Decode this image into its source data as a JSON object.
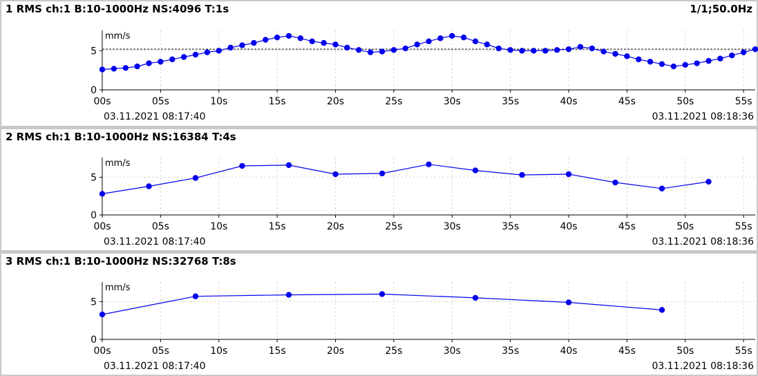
{
  "header": {
    "page_info": "1/1;50.0Hz"
  },
  "timestamps": {
    "start": "03.11.2021 08:17:40",
    "end": "03.11.2021 08:18:36"
  },
  "colors": {
    "series": "#0000ee",
    "grid": "#d8d8d8",
    "reference": "#000000"
  },
  "chart_data": [
    {
      "type": "line",
      "title": "1 RMS ch:1 B:10-1000Hz NS:4096 T:1s",
      "ylabel": "mm/s",
      "xlim": [
        0,
        56
      ],
      "ylim": [
        0,
        7.6
      ],
      "yticks": [
        0,
        5
      ],
      "xticks": [
        0,
        5,
        10,
        15,
        20,
        25,
        30,
        35,
        40,
        45,
        50,
        55
      ],
      "xticklabels": [
        "00s",
        "05s",
        "10s",
        "15s",
        "20s",
        "25s",
        "30s",
        "35s",
        "40s",
        "45s",
        "50s",
        "55s"
      ],
      "reference_line": 5.2,
      "x": [
        0,
        1,
        2,
        3,
        4,
        5,
        6,
        7,
        8,
        9,
        10,
        11,
        12,
        13,
        14,
        15,
        16,
        17,
        18,
        19,
        20,
        21,
        22,
        23,
        24,
        25,
        26,
        27,
        28,
        29,
        30,
        31,
        32,
        33,
        34,
        35,
        36,
        37,
        38,
        39,
        40,
        41,
        42,
        43,
        44,
        45,
        46,
        47,
        48,
        49,
        50,
        51,
        52,
        53,
        54,
        55,
        56
      ],
      "values": [
        2.6,
        2.7,
        2.8,
        3.0,
        3.4,
        3.6,
        3.9,
        4.2,
        4.5,
        4.8,
        5.0,
        5.4,
        5.7,
        6.0,
        6.4,
        6.7,
        6.9,
        6.6,
        6.2,
        6.0,
        5.8,
        5.4,
        5.1,
        4.8,
        4.9,
        5.1,
        5.3,
        5.8,
        6.2,
        6.6,
        6.9,
        6.7,
        6.2,
        5.8,
        5.3,
        5.1,
        5.0,
        5.0,
        5.0,
        5.1,
        5.2,
        5.5,
        5.3,
        4.9,
        4.6,
        4.3,
        3.9,
        3.6,
        3.3,
        3.0,
        3.2,
        3.4,
        3.7,
        4.0,
        4.4,
        4.8,
        5.2
      ]
    },
    {
      "type": "line",
      "title": "2 RMS ch:1 B:10-1000Hz NS:16384 T:4s",
      "ylabel": "mm/s",
      "xlim": [
        0,
        56
      ],
      "ylim": [
        0,
        7.6
      ],
      "yticks": [
        0,
        5
      ],
      "xticks": [
        0,
        5,
        10,
        15,
        20,
        25,
        30,
        35,
        40,
        45,
        50,
        55
      ],
      "xticklabels": [
        "00s",
        "05s",
        "10s",
        "15s",
        "20s",
        "25s",
        "30s",
        "35s",
        "40s",
        "45s",
        "50s",
        "55s"
      ],
      "x": [
        0,
        4,
        8,
        12,
        16,
        20,
        24,
        28,
        32,
        36,
        40,
        44,
        48,
        52
      ],
      "values": [
        2.8,
        3.8,
        4.9,
        6.5,
        6.6,
        5.4,
        5.5,
        6.7,
        5.9,
        5.3,
        5.4,
        4.3,
        3.5,
        4.4
      ]
    },
    {
      "type": "line",
      "title": "3 RMS ch:1 B:10-1000Hz NS:32768 T:8s",
      "ylabel": "mm/s",
      "xlim": [
        0,
        56
      ],
      "ylim": [
        0,
        7.6
      ],
      "yticks": [
        0,
        5
      ],
      "xticks": [
        0,
        5,
        10,
        15,
        20,
        25,
        30,
        35,
        40,
        45,
        50,
        55
      ],
      "xticklabels": [
        "00s",
        "05s",
        "10s",
        "15s",
        "20s",
        "25s",
        "30s",
        "35s",
        "40s",
        "45s",
        "50s",
        "55s"
      ],
      "x": [
        0,
        8,
        16,
        24,
        32,
        40,
        48
      ],
      "values": [
        3.3,
        5.7,
        5.9,
        6.0,
        5.5,
        4.9,
        3.9
      ]
    }
  ]
}
